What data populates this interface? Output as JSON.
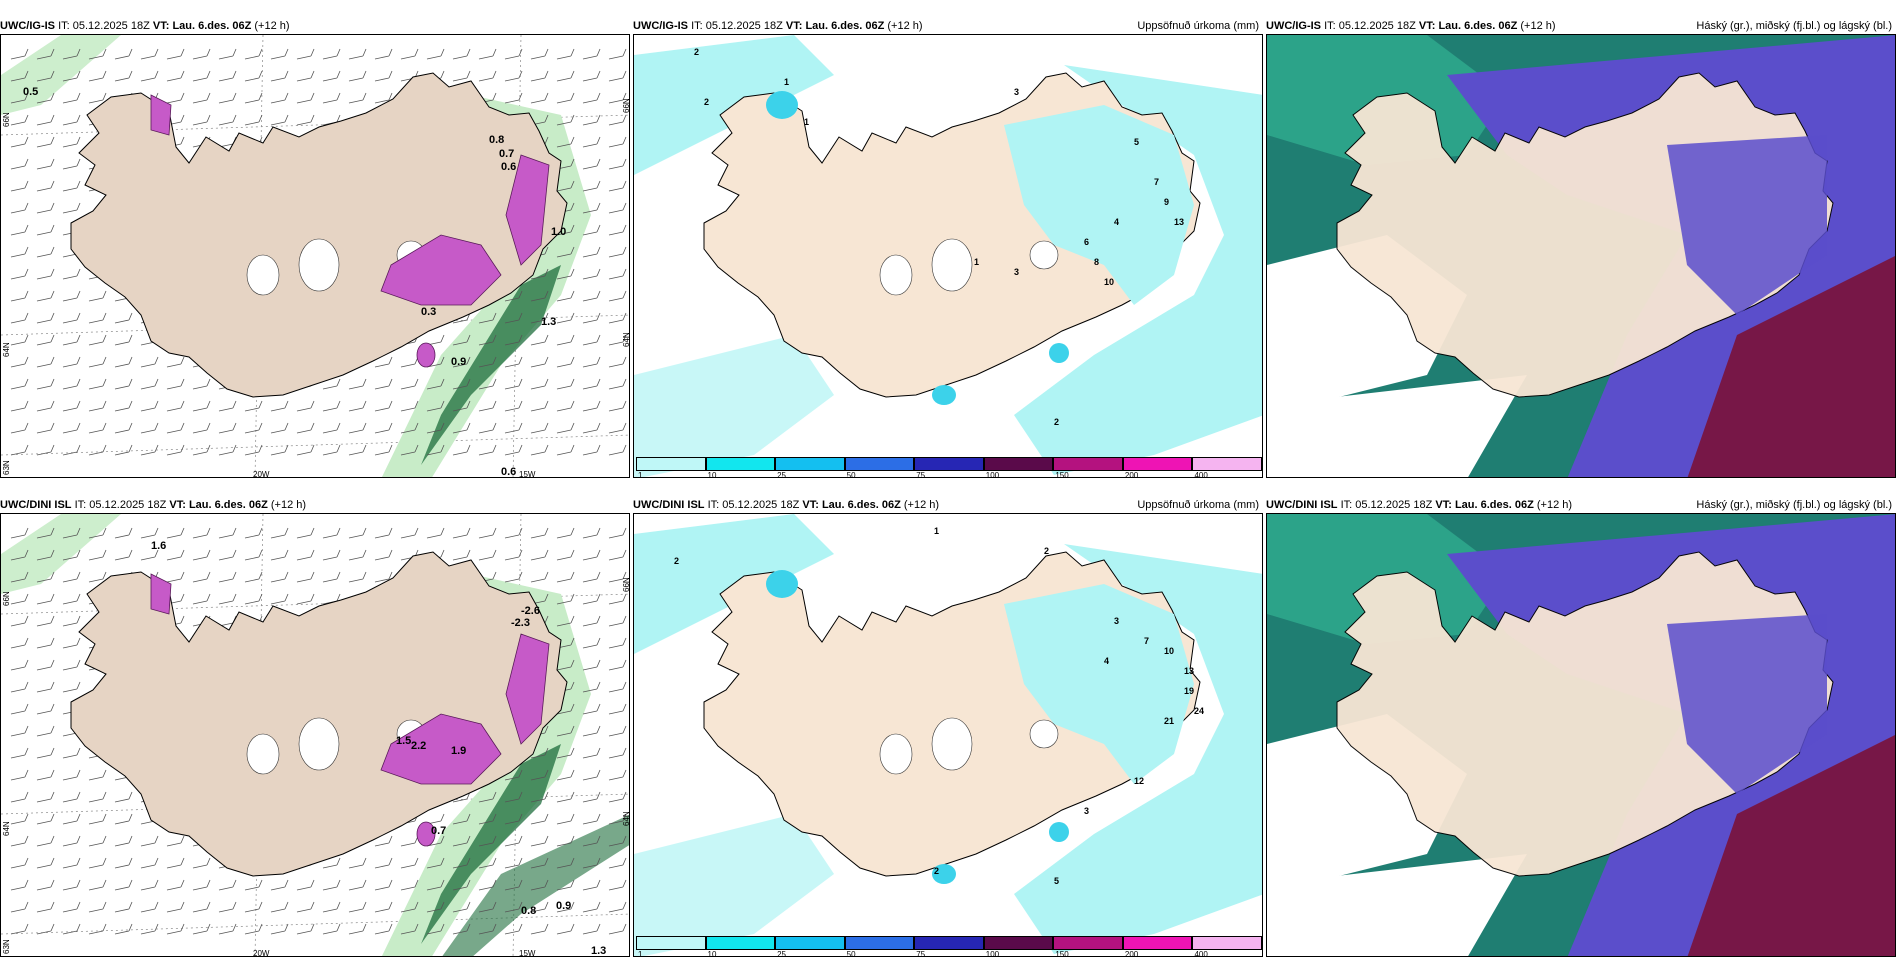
{
  "panels": [
    {
      "model": "UWC/IG-IS",
      "it_label": "IT:",
      "it_value": "05.12.2025 18Z",
      "vt_label": "VT:",
      "vt_value": "Lau. 6.des. 06Z",
      "lead": "(+12 h)",
      "right_title": "",
      "kind": "wind",
      "values": [
        "0.5",
        "0.8",
        "0.7",
        "0.6",
        "0.3",
        "0.9",
        "0.6",
        "1.3",
        "1.0"
      ],
      "axis": {
        "lat1": "66N",
        "lat2": "64N",
        "lat3": "63N",
        "lon1": "20W",
        "lon2": "15W"
      }
    },
    {
      "model": "UWC/IG-IS",
      "it_label": "IT:",
      "it_value": "05.12.2025 18Z",
      "vt_label": "VT:",
      "vt_value": "Lau. 6.des. 06Z",
      "lead": "(+12 h)",
      "right_title": "Uppsöfnuð úrkoma (mm)",
      "kind": "precip",
      "values": [
        "2",
        "2",
        "1",
        "1",
        "3",
        "5",
        "7",
        "9",
        "13",
        "4",
        "6",
        "8",
        "10",
        "3",
        "1",
        "2"
      ],
      "axis": {}
    },
    {
      "model": "UWC/IG-IS",
      "it_label": "IT:",
      "it_value": "05.12.2025 18Z",
      "vt_label": "VT:",
      "vt_value": "Lau. 6.des. 06Z",
      "lead": "(+12 h)",
      "right_title": "Háský (gr.), miðský (fj.bl.) og lágský (bl.)",
      "kind": "cloud",
      "values": [],
      "axis": {}
    },
    {
      "model": "UWC/DINI ISL",
      "it_label": "IT:",
      "it_value": "05.12.2025 18Z",
      "vt_label": "VT:",
      "vt_value": "Lau. 6.des. 06Z",
      "lead": "(+12 h)",
      "right_title": "",
      "kind": "wind",
      "values": [
        "1.6",
        "-2.6",
        "-2.3",
        "1.5",
        "2.2",
        "1.9",
        "0.7",
        "0.8",
        "0.9",
        "1.3"
      ],
      "axis": {
        "lat1": "66N",
        "lat2": "64N",
        "lat3": "63N",
        "lon1": "20W",
        "lon2": "15W"
      }
    },
    {
      "model": "UWC/DINI ISL",
      "it_label": "IT:",
      "it_value": "05.12.2025 18Z",
      "vt_label": "VT:",
      "vt_value": "Lau. 6.des. 06Z",
      "lead": "(+12 h)",
      "right_title": "Uppsöfnuð úrkoma (mm)",
      "kind": "precip",
      "values": [
        "2",
        "1",
        "2",
        "3",
        "4",
        "7",
        "10",
        "13",
        "19",
        "24",
        "21",
        "12",
        "3",
        "5",
        "2"
      ],
      "axis": {}
    },
    {
      "model": "UWC/DINI ISL",
      "it_label": "IT:",
      "it_value": "05.12.2025 18Z",
      "vt_label": "VT:",
      "vt_value": "Lau. 6.des. 06Z",
      "lead": "(+12 h)",
      "right_title": "Háský (gr.), miðský (fj.bl.) og lágský (bl.)",
      "kind": "cloud",
      "values": [],
      "axis": {}
    }
  ],
  "precip_legend": {
    "ticks": [
      "1",
      "10",
      "25",
      "50",
      "75",
      "100",
      "150",
      "200",
      "400"
    ],
    "colors": [
      "#bff7f7",
      "#12e6ee",
      "#14bff0",
      "#2c6ee6",
      "#2626b4",
      "#5a0a4a",
      "#b4127f",
      "#ee14b4",
      "#f5b4f0"
    ]
  },
  "colors": {
    "land": "#f7e6d4",
    "land_wind": "#e6d4c4",
    "sea": "#ffffff",
    "precip_light": "#b0f4f4",
    "precip_mid": "#3cd2ea",
    "green_light": "#c8ecc8",
    "green_dark": "#1e6e3c",
    "magenta": "#c65ac8",
    "cloud_high": "#7a1238",
    "cloud_mid": "#5b4ecb",
    "cloud_low": "#1f7e72"
  }
}
